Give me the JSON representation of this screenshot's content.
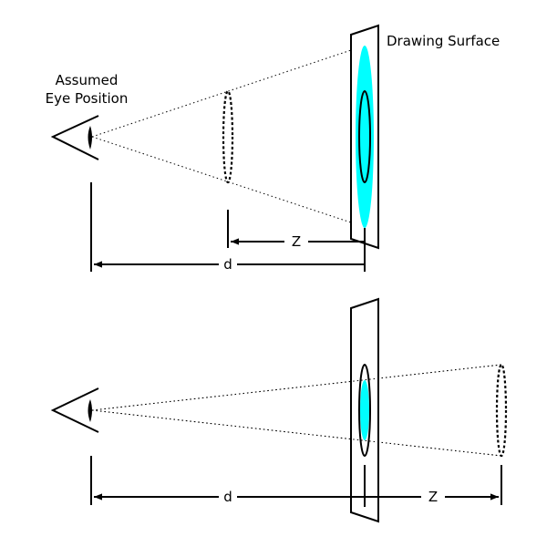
{
  "labels": {
    "drawing_surface": "Drawing Surface",
    "eye_line1": "Assumed",
    "eye_line2": "Eye Position",
    "z_top": "Z",
    "d_top": "d",
    "d_bottom": "d",
    "z_bottom": "Z"
  },
  "colors": {
    "projection_fill": "#00ffff",
    "ink": "#000000",
    "background": "#ffffff"
  },
  "icons": {
    "eye": "eye-icon"
  }
}
